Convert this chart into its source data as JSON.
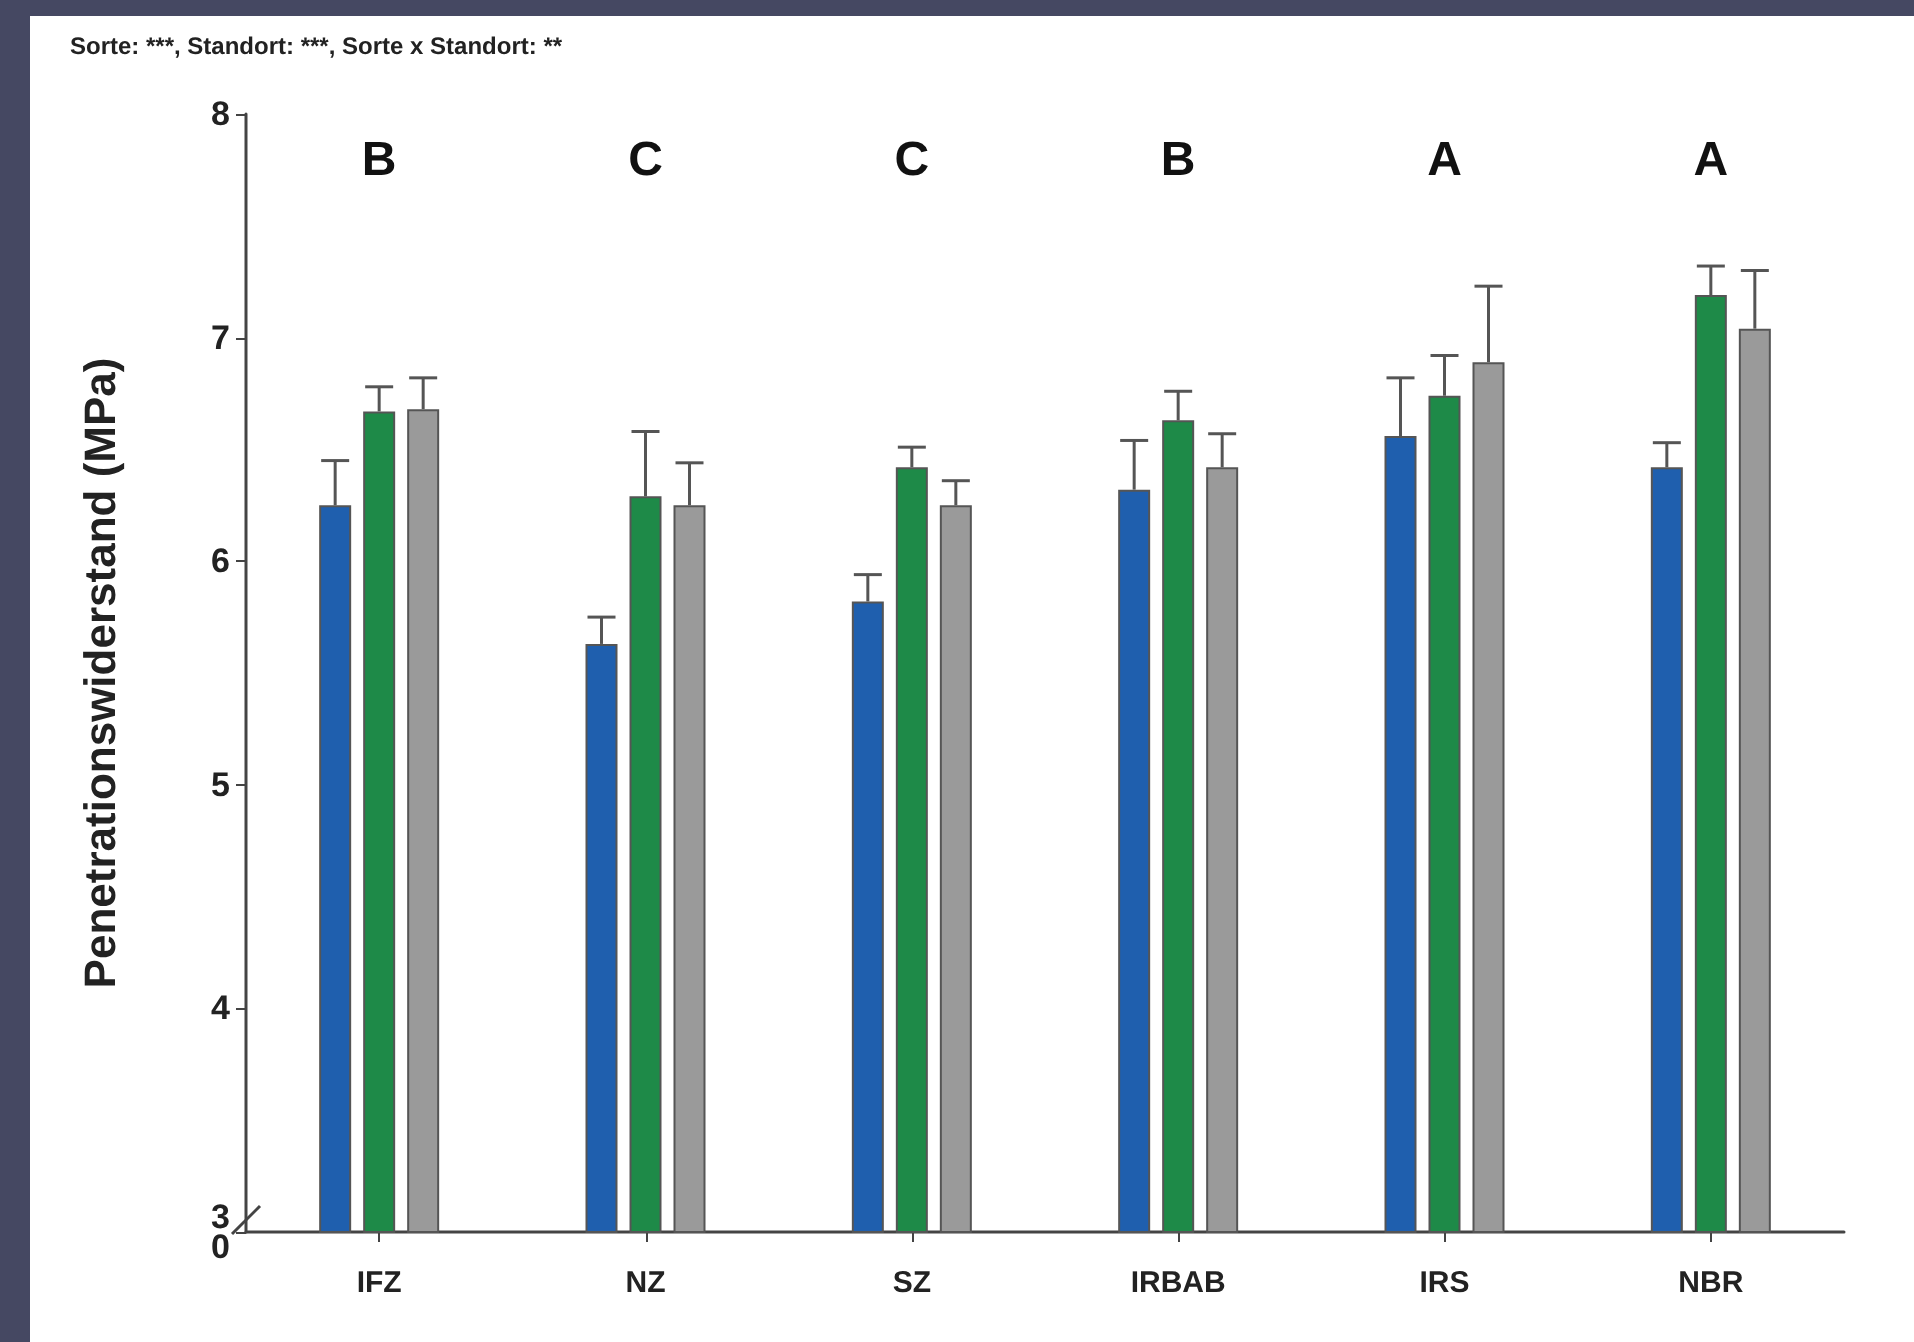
{
  "chart_data": {
    "type": "bar",
    "title": "Sorte: ***, Standort: ***, Sorte x Standort: **",
    "ylabel": "Penetrationswiderstand (MPa)",
    "categories": [
      "IFZ",
      "NZ",
      "SZ",
      "IRBAB",
      "IRS",
      "NBR"
    ],
    "series": [
      {
        "color": "#1f5fae",
        "values": [
          6.25,
          5.63,
          5.82,
          6.32,
          6.56,
          6.42
        ],
        "errors": [
          [
            6.25,
            6.45
          ],
          [
            5.63,
            5.75
          ],
          [
            5.82,
            5.94
          ],
          [
            6.32,
            6.54
          ],
          [
            6.56,
            6.82
          ],
          [
            6.42,
            6.53
          ]
        ]
      },
      {
        "color": "#1e8a48",
        "values": [
          6.67,
          6.29,
          6.42,
          6.63,
          6.74,
          7.19
        ],
        "errors": [
          [
            6.67,
            6.78
          ],
          [
            6.29,
            6.58
          ],
          [
            6.42,
            6.51
          ],
          [
            6.63,
            6.76
          ],
          [
            6.74,
            6.92
          ],
          [
            7.19,
            7.32
          ]
        ]
      },
      {
        "color": "#9a9a9a",
        "values": [
          6.68,
          6.25,
          6.25,
          6.42,
          6.89,
          7.04
        ],
        "errors": [
          [
            6.68,
            6.82
          ],
          [
            6.25,
            6.44
          ],
          [
            6.25,
            6.36
          ],
          [
            6.42,
            6.57
          ],
          [
            6.89,
            7.23
          ],
          [
            7.04,
            7.3
          ]
        ]
      }
    ],
    "ylim": [
      3,
      8
    ],
    "yticks": [
      {
        "value": 3,
        "label": "3\n0"
      },
      4,
      5,
      6,
      7,
      8
    ],
    "annotations": [
      "B",
      "C",
      "C",
      "B",
      "A",
      "A"
    ],
    "grid": false
  }
}
